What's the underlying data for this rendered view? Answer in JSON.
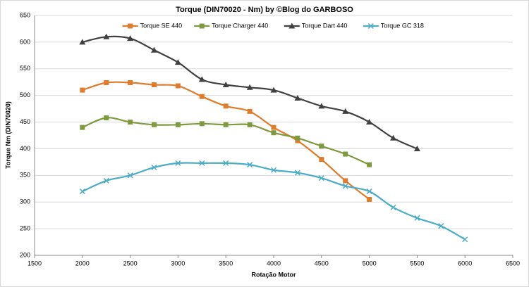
{
  "chart_data": {
    "type": "line",
    "title": "Torque (DIN70020 - Nm) by ©Blog do GARBOSO",
    "x_label": "Rotação Motor",
    "y_label": "Torque Nm (DIN70020)",
    "xlim": [
      1500,
      6500
    ],
    "xticks": [
      1500,
      2000,
      2500,
      3000,
      3500,
      4000,
      4500,
      5000,
      5500,
      6000,
      6500
    ],
    "ylim": [
      200,
      650
    ],
    "yticks": [
      200,
      250,
      300,
      350,
      400,
      450,
      500,
      550,
      600,
      650
    ],
    "grid": true,
    "smooth": true,
    "legend": "top",
    "series": [
      {
        "name": "Torque SE 440",
        "color": "#e07b2a",
        "marker": "square",
        "x": [
          2000,
          2250,
          2500,
          2750,
          3000,
          3250,
          3500,
          3750,
          4000,
          4250,
          4500,
          4750,
          5000
        ],
        "values": [
          510,
          524,
          524,
          520,
          518,
          498,
          480,
          470,
          440,
          415,
          380,
          340,
          305
        ]
      },
      {
        "name": "Torque Charger 440",
        "color": "#7f9a3e",
        "marker": "square",
        "x": [
          2000,
          2250,
          2500,
          2750,
          3000,
          3250,
          3500,
          3750,
          4000,
          4250,
          4500,
          4750,
          5000
        ],
        "values": [
          440,
          458,
          450,
          445,
          445,
          447,
          445,
          445,
          430,
          420,
          405,
          390,
          370
        ]
      },
      {
        "name": "Torque Dart 440",
        "color": "#404040",
        "marker": "triangle",
        "x": [
          2000,
          2250,
          2500,
          2750,
          3000,
          3250,
          3500,
          3750,
          4000,
          4250,
          4500,
          4750,
          5000,
          5250,
          5500
        ],
        "values": [
          600,
          610,
          607,
          585,
          562,
          530,
          520,
          515,
          510,
          495,
          480,
          470,
          450,
          420,
          400
        ]
      },
      {
        "name": "Torque GC 318",
        "color": "#4bacc6",
        "marker": "x",
        "x": [
          2000,
          2250,
          2500,
          2750,
          3000,
          3250,
          3500,
          3750,
          4000,
          4250,
          4500,
          4750,
          5000,
          5250,
          5500,
          5750,
          6000
        ],
        "values": [
          320,
          340,
          350,
          365,
          373,
          373,
          373,
          370,
          360,
          355,
          345,
          330,
          320,
          290,
          270,
          255,
          230
        ]
      }
    ]
  }
}
